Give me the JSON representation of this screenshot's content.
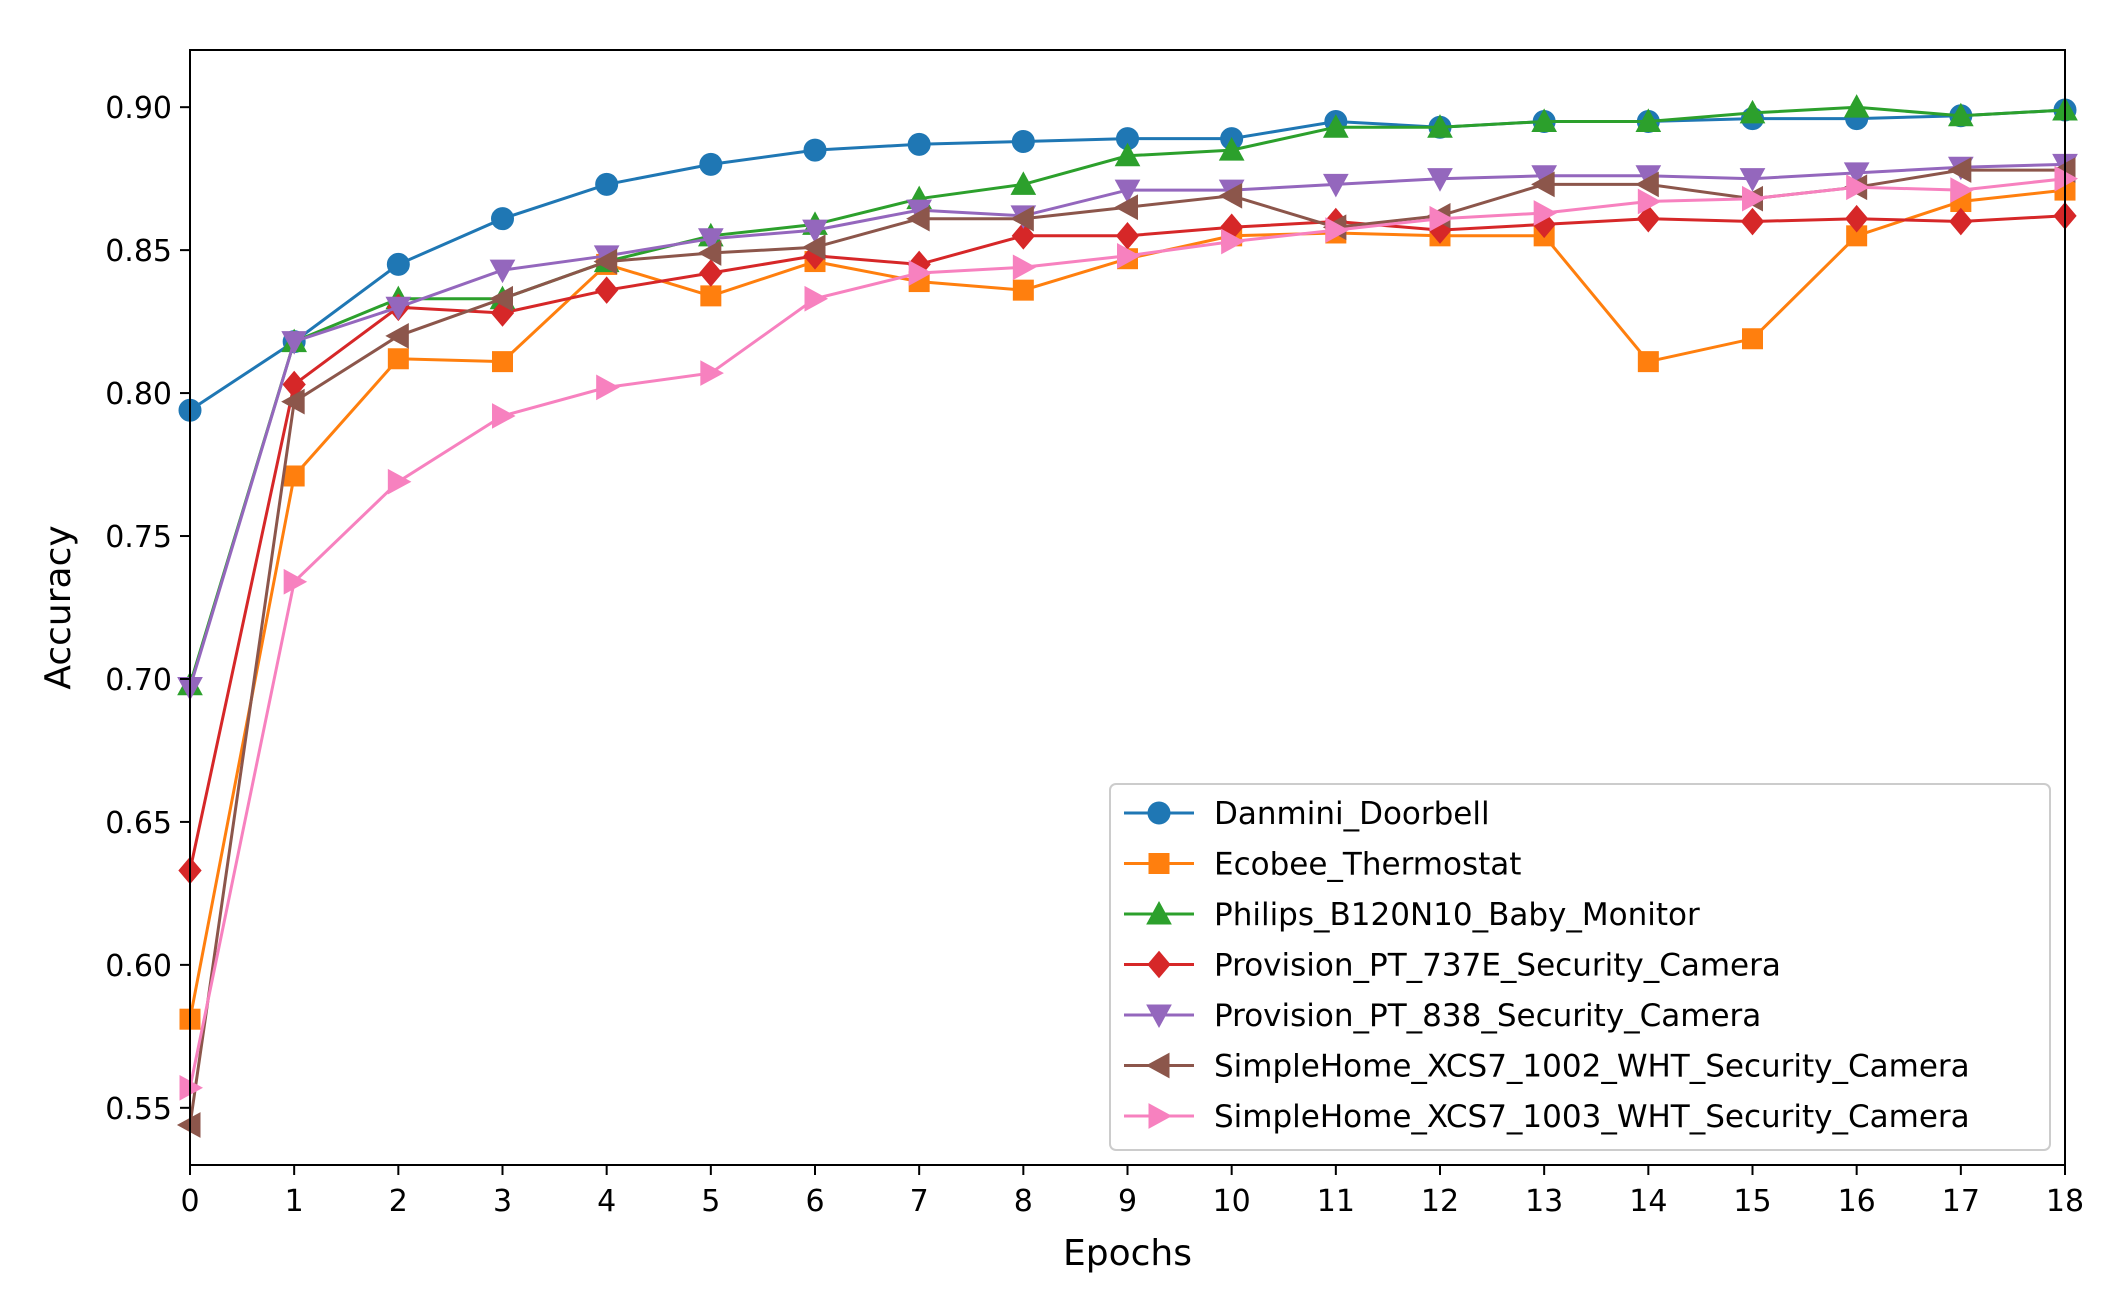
{
  "chart_data": {
    "type": "line",
    "title": "",
    "xlabel": "Epochs",
    "ylabel": "Accuracy",
    "xlim": [
      0,
      18
    ],
    "ylim": [
      0.53,
      0.92
    ],
    "xticks": [
      "0",
      "1",
      "2",
      "3",
      "4",
      "5",
      "6",
      "7",
      "8",
      "9",
      "10",
      "11",
      "12",
      "13",
      "14",
      "15",
      "16",
      "17",
      "18"
    ],
    "yticks": [
      "0.55",
      "0.60",
      "0.65",
      "0.70",
      "0.75",
      "0.80",
      "0.85",
      "0.90"
    ],
    "ytick_values": [
      0.55,
      0.6,
      0.65,
      0.7,
      0.75,
      0.8,
      0.85,
      0.9
    ],
    "grid": false,
    "legend_position": "lower-right",
    "x": [
      0,
      1,
      2,
      3,
      4,
      5,
      6,
      7,
      8,
      9,
      10,
      11,
      12,
      13,
      14,
      15,
      16,
      17,
      18
    ],
    "series": [
      {
        "name": "Danmini_Doorbell",
        "color": "#1f77b4",
        "marker": "circle",
        "values": [
          0.794,
          0.818,
          0.845,
          0.861,
          0.873,
          0.88,
          0.885,
          0.887,
          0.888,
          0.889,
          0.889,
          0.895,
          0.893,
          0.895,
          0.895,
          0.896,
          0.896,
          0.897,
          0.899
        ]
      },
      {
        "name": "Ecobee_Thermostat",
        "color": "#ff7f0e",
        "marker": "square",
        "values": [
          0.581,
          0.771,
          0.812,
          0.811,
          0.845,
          0.834,
          0.846,
          0.839,
          0.836,
          0.847,
          0.855,
          0.856,
          0.855,
          0.855,
          0.811,
          0.819,
          0.855,
          0.867,
          0.871
        ]
      },
      {
        "name": "Philips_B120N10_Baby_Monitor",
        "color": "#2ca02c",
        "marker": "triangle-up",
        "values": [
          0.698,
          0.818,
          0.833,
          0.833,
          0.846,
          0.855,
          0.859,
          0.868,
          0.873,
          0.883,
          0.885,
          0.893,
          0.893,
          0.895,
          0.895,
          0.898,
          0.9,
          0.897,
          0.899
        ]
      },
      {
        "name": "Provision_PT_737E_Security_Camera",
        "color": "#d62728",
        "marker": "diamond",
        "values": [
          0.633,
          0.803,
          0.83,
          0.828,
          0.836,
          0.842,
          0.848,
          0.845,
          0.855,
          0.855,
          0.858,
          0.86,
          0.857,
          0.859,
          0.861,
          0.86,
          0.861,
          0.86,
          0.862
        ]
      },
      {
        "name": "Provision_PT_838_Security_Camera",
        "color": "#9467bd",
        "marker": "triangle-down",
        "values": [
          0.697,
          0.818,
          0.83,
          0.843,
          0.848,
          0.854,
          0.857,
          0.864,
          0.862,
          0.871,
          0.871,
          0.873,
          0.875,
          0.876,
          0.876,
          0.875,
          0.877,
          0.879,
          0.88
        ]
      },
      {
        "name": "SimpleHome_XCS7_1002_WHT_Security_Camera",
        "color": "#8c564b",
        "marker": "triangle-left",
        "values": [
          0.544,
          0.797,
          0.82,
          0.833,
          0.846,
          0.849,
          0.851,
          0.861,
          0.861,
          0.865,
          0.869,
          0.858,
          0.862,
          0.873,
          0.873,
          0.868,
          0.872,
          0.878,
          0.878
        ]
      },
      {
        "name": "SimpleHome_XCS7_1003_WHT_Security_Camera",
        "color": "#f781bf",
        "marker": "triangle-right",
        "values": [
          0.557,
          0.734,
          0.769,
          0.792,
          0.802,
          0.807,
          0.833,
          0.842,
          0.844,
          0.848,
          0.853,
          0.857,
          0.861,
          0.863,
          0.867,
          0.868,
          0.872,
          0.871,
          0.875
        ]
      }
    ]
  }
}
